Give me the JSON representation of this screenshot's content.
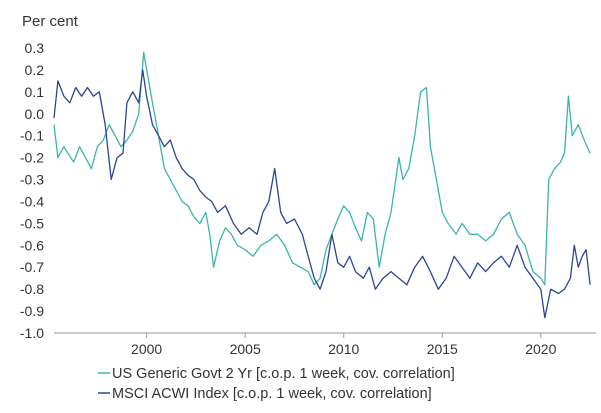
{
  "chart_data": {
    "type": "line",
    "unit_label": "Per cent",
    "title": "",
    "xlabel": "",
    "ylabel": "",
    "xlim": [
      1995.3,
      2022.8
    ],
    "ylim": [
      -1.0,
      0.3
    ],
    "y_ticks": [
      0.3,
      0.2,
      0.1,
      0.0,
      -0.1,
      -0.2,
      -0.3,
      -0.4,
      -0.5,
      -0.6,
      -0.7,
      -0.8,
      -0.9,
      -1.0
    ],
    "y_tick_labels": [
      "0.3",
      "0.2",
      "0.1",
      "0.0",
      "-0.1",
      "-0.2",
      "-0.3",
      "-0.4",
      "-0.5",
      "-0.6",
      "-0.7",
      "-0.8",
      "-0.9",
      "-1.0"
    ],
    "x_ticks": [
      2000,
      2005,
      2010,
      2015,
      2020
    ],
    "x_tick_labels": [
      "2000",
      "2005",
      "2010",
      "2015",
      "2020"
    ],
    "grid": false,
    "legend_position": "bottom",
    "series": [
      {
        "name": "US Generic Govt 2 Yr [c.o.p. 1 week, cov. correlation]",
        "color": "#3cb4ad",
        "points": [
          [
            1995.3,
            -0.05
          ],
          [
            1995.5,
            -0.2
          ],
          [
            1995.8,
            -0.15
          ],
          [
            1996.0,
            -0.18
          ],
          [
            1996.3,
            -0.22
          ],
          [
            1996.6,
            -0.15
          ],
          [
            1996.9,
            -0.2
          ],
          [
            1997.2,
            -0.25
          ],
          [
            1997.5,
            -0.15
          ],
          [
            1997.8,
            -0.12
          ],
          [
            1998.1,
            -0.05
          ],
          [
            1998.4,
            -0.1
          ],
          [
            1998.7,
            -0.15
          ],
          [
            1999.0,
            -0.12
          ],
          [
            1999.3,
            -0.08
          ],
          [
            1999.6,
            0.0
          ],
          [
            1999.85,
            0.28
          ],
          [
            2000.1,
            0.15
          ],
          [
            2000.3,
            0.05
          ],
          [
            2000.6,
            -0.1
          ],
          [
            2000.9,
            -0.25
          ],
          [
            2001.2,
            -0.3
          ],
          [
            2001.5,
            -0.35
          ],
          [
            2001.8,
            -0.4
          ],
          [
            2002.1,
            -0.42
          ],
          [
            2002.4,
            -0.47
          ],
          [
            2002.7,
            -0.5
          ],
          [
            2003.0,
            -0.45
          ],
          [
            2003.2,
            -0.55
          ],
          [
            2003.4,
            -0.7
          ],
          [
            2003.7,
            -0.58
          ],
          [
            2004.0,
            -0.52
          ],
          [
            2004.3,
            -0.55
          ],
          [
            2004.6,
            -0.6
          ],
          [
            2005.0,
            -0.62
          ],
          [
            2005.4,
            -0.65
          ],
          [
            2005.8,
            -0.6
          ],
          [
            2006.2,
            -0.58
          ],
          [
            2006.6,
            -0.55
          ],
          [
            2007.0,
            -0.6
          ],
          [
            2007.4,
            -0.68
          ],
          [
            2007.8,
            -0.7
          ],
          [
            2008.2,
            -0.72
          ],
          [
            2008.5,
            -0.78
          ],
          [
            2008.8,
            -0.75
          ],
          [
            2009.1,
            -0.62
          ],
          [
            2009.4,
            -0.55
          ],
          [
            2009.7,
            -0.48
          ],
          [
            2010.0,
            -0.42
          ],
          [
            2010.3,
            -0.45
          ],
          [
            2010.6,
            -0.52
          ],
          [
            2010.9,
            -0.58
          ],
          [
            2011.2,
            -0.45
          ],
          [
            2011.5,
            -0.48
          ],
          [
            2011.8,
            -0.7
          ],
          [
            2012.1,
            -0.55
          ],
          [
            2012.4,
            -0.45
          ],
          [
            2012.8,
            -0.2
          ],
          [
            2013.0,
            -0.3
          ],
          [
            2013.3,
            -0.25
          ],
          [
            2013.6,
            -0.1
          ],
          [
            2013.9,
            0.1
          ],
          [
            2014.2,
            0.12
          ],
          [
            2014.4,
            -0.15
          ],
          [
            2014.7,
            -0.3
          ],
          [
            2015.0,
            -0.45
          ],
          [
            2015.3,
            -0.5
          ],
          [
            2015.7,
            -0.55
          ],
          [
            2016.0,
            -0.5
          ],
          [
            2016.4,
            -0.55
          ],
          [
            2016.8,
            -0.55
          ],
          [
            2017.2,
            -0.58
          ],
          [
            2017.6,
            -0.55
          ],
          [
            2018.0,
            -0.48
          ],
          [
            2018.4,
            -0.45
          ],
          [
            2018.8,
            -0.55
          ],
          [
            2019.2,
            -0.6
          ],
          [
            2019.6,
            -0.72
          ],
          [
            2020.0,
            -0.75
          ],
          [
            2020.2,
            -0.78
          ],
          [
            2020.4,
            -0.3
          ],
          [
            2020.7,
            -0.25
          ],
          [
            2021.0,
            -0.22
          ],
          [
            2021.2,
            -0.18
          ],
          [
            2021.4,
            0.08
          ],
          [
            2021.6,
            -0.1
          ],
          [
            2021.9,
            -0.05
          ],
          [
            2022.2,
            -0.12
          ],
          [
            2022.5,
            -0.18
          ]
        ]
      },
      {
        "name": "MSCI ACWI Index [c.o.p. 1 week, cov. correlation]",
        "color": "#2c4595",
        "points": [
          [
            1995.3,
            -0.02
          ],
          [
            1995.5,
            0.15
          ],
          [
            1995.8,
            0.08
          ],
          [
            1996.1,
            0.05
          ],
          [
            1996.4,
            0.12
          ],
          [
            1996.7,
            0.08
          ],
          [
            1997.0,
            0.12
          ],
          [
            1997.3,
            0.08
          ],
          [
            1997.6,
            0.1
          ],
          [
            1997.9,
            -0.05
          ],
          [
            1998.2,
            -0.3
          ],
          [
            1998.5,
            -0.2
          ],
          [
            1998.8,
            -0.18
          ],
          [
            1999.0,
            0.05
          ],
          [
            1999.3,
            0.1
          ],
          [
            1999.6,
            0.05
          ],
          [
            1999.8,
            0.2
          ],
          [
            2000.0,
            0.08
          ],
          [
            2000.3,
            -0.05
          ],
          [
            2000.6,
            -0.1
          ],
          [
            2000.9,
            -0.15
          ],
          [
            2001.2,
            -0.12
          ],
          [
            2001.5,
            -0.2
          ],
          [
            2001.8,
            -0.25
          ],
          [
            2002.1,
            -0.28
          ],
          [
            2002.4,
            -0.3
          ],
          [
            2002.7,
            -0.35
          ],
          [
            2003.0,
            -0.38
          ],
          [
            2003.3,
            -0.4
          ],
          [
            2003.6,
            -0.45
          ],
          [
            2004.0,
            -0.42
          ],
          [
            2004.4,
            -0.5
          ],
          [
            2004.8,
            -0.55
          ],
          [
            2005.2,
            -0.52
          ],
          [
            2005.6,
            -0.55
          ],
          [
            2005.9,
            -0.45
          ],
          [
            2006.2,
            -0.4
          ],
          [
            2006.5,
            -0.25
          ],
          [
            2006.8,
            -0.45
          ],
          [
            2007.1,
            -0.5
          ],
          [
            2007.5,
            -0.48
          ],
          [
            2007.9,
            -0.55
          ],
          [
            2008.2,
            -0.65
          ],
          [
            2008.5,
            -0.75
          ],
          [
            2008.8,
            -0.8
          ],
          [
            2009.1,
            -0.72
          ],
          [
            2009.4,
            -0.55
          ],
          [
            2009.7,
            -0.68
          ],
          [
            2010.0,
            -0.7
          ],
          [
            2010.3,
            -0.65
          ],
          [
            2010.6,
            -0.72
          ],
          [
            2011.0,
            -0.75
          ],
          [
            2011.3,
            -0.7
          ],
          [
            2011.6,
            -0.8
          ],
          [
            2012.0,
            -0.75
          ],
          [
            2012.4,
            -0.72
          ],
          [
            2012.8,
            -0.75
          ],
          [
            2013.2,
            -0.78
          ],
          [
            2013.6,
            -0.7
          ],
          [
            2014.0,
            -0.65
          ],
          [
            2014.4,
            -0.72
          ],
          [
            2014.8,
            -0.8
          ],
          [
            2015.2,
            -0.75
          ],
          [
            2015.6,
            -0.65
          ],
          [
            2016.0,
            -0.7
          ],
          [
            2016.4,
            -0.75
          ],
          [
            2016.8,
            -0.68
          ],
          [
            2017.2,
            -0.72
          ],
          [
            2017.6,
            -0.68
          ],
          [
            2018.0,
            -0.65
          ],
          [
            2018.4,
            -0.7
          ],
          [
            2018.8,
            -0.6
          ],
          [
            2019.2,
            -0.7
          ],
          [
            2019.6,
            -0.75
          ],
          [
            2020.0,
            -0.8
          ],
          [
            2020.2,
            -0.93
          ],
          [
            2020.5,
            -0.8
          ],
          [
            2020.9,
            -0.82
          ],
          [
            2021.2,
            -0.8
          ],
          [
            2021.5,
            -0.75
          ],
          [
            2021.7,
            -0.6
          ],
          [
            2021.9,
            -0.7
          ],
          [
            2022.1,
            -0.65
          ],
          [
            2022.3,
            -0.62
          ],
          [
            2022.5,
            -0.78
          ]
        ]
      }
    ]
  }
}
